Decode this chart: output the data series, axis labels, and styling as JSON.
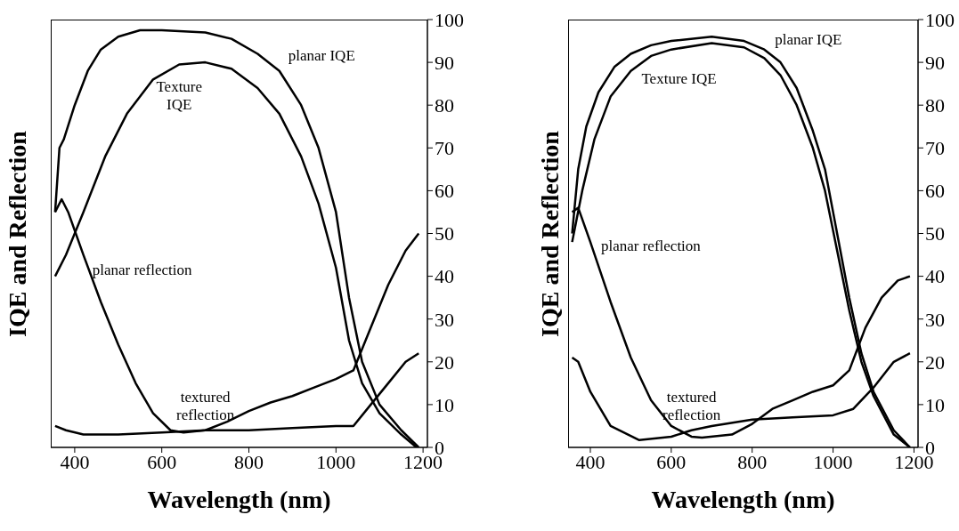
{
  "chart_data": [
    {
      "type": "line",
      "xlabel": "Wavelength (nm)",
      "ylabel": "IQE and Reflection",
      "xlim": [
        345,
        1210
      ],
      "xticks": [
        400,
        600,
        800,
        1000,
        1200
      ],
      "ylim": [
        0,
        100
      ],
      "yticks": [
        0,
        10,
        20,
        30,
        40,
        50,
        60,
        70,
        80,
        90,
        100
      ],
      "series": [
        {
          "name": "planar IQE",
          "color": "#000000",
          "x": [
            355,
            365,
            375,
            400,
            430,
            460,
            500,
            550,
            600,
            700,
            760,
            820,
            870,
            920,
            960,
            1000,
            1030,
            1060,
            1100,
            1150,
            1190
          ],
          "values": [
            55,
            70,
            72,
            80,
            88,
            93,
            96,
            97.5,
            97.5,
            97,
            95.5,
            92,
            88,
            80,
            70,
            55,
            35,
            20,
            10,
            4,
            0
          ]
        },
        {
          "name": "Texture IQE",
          "color": "#000000",
          "x": [
            355,
            380,
            420,
            470,
            520,
            580,
            640,
            700,
            760,
            820,
            870,
            920,
            960,
            1000,
            1030,
            1060,
            1100,
            1150,
            1185
          ],
          "values": [
            40,
            45,
            55,
            68,
            78,
            86,
            89.5,
            90,
            88.5,
            84,
            78,
            68,
            57,
            42,
            25,
            15,
            8,
            3,
            0
          ]
        },
        {
          "name": "planar reflection",
          "color": "#000000",
          "x": [
            355,
            370,
            385,
            420,
            460,
            500,
            540,
            580,
            620,
            650,
            700,
            750,
            800,
            850,
            900,
            950,
            1000,
            1040,
            1080,
            1120,
            1160,
            1190
          ],
          "values": [
            55,
            58,
            55,
            45,
            34,
            24,
            15,
            8,
            4,
            3.5,
            4,
            6,
            8.5,
            10.5,
            12,
            14,
            16,
            18,
            28,
            38,
            46,
            50
          ]
        },
        {
          "name": "textured reflection",
          "color": "#000000",
          "x": [
            355,
            380,
            420,
            500,
            600,
            700,
            800,
            900,
            1000,
            1040,
            1080,
            1120,
            1160,
            1190
          ],
          "values": [
            5,
            4,
            3,
            3,
            3.5,
            4,
            4,
            4.5,
            5,
            5,
            10,
            15,
            20,
            22
          ]
        }
      ]
    },
    {
      "type": "line",
      "xlabel": "Wavelength (nm)",
      "ylabel": "IQE and Reflection",
      "xlim": [
        345,
        1210
      ],
      "xticks": [
        400,
        600,
        800,
        1000,
        1200
      ],
      "ylim": [
        0,
        100
      ],
      "yticks": [
        0,
        10,
        20,
        30,
        40,
        50,
        60,
        70,
        80,
        90,
        100
      ],
      "series": [
        {
          "name": "planar IQE",
          "color": "#000000",
          "x": [
            355,
            370,
            390,
            420,
            460,
            500,
            550,
            600,
            700,
            780,
            830,
            870,
            910,
            950,
            980,
            1010,
            1040,
            1070,
            1100,
            1150,
            1190
          ],
          "values": [
            50,
            65,
            75,
            83,
            89,
            92,
            94,
            95,
            96,
            95,
            93,
            90,
            84,
            74,
            65,
            50,
            35,
            22,
            13,
            4,
            0
          ]
        },
        {
          "name": "Texture IQE",
          "color": "#000000",
          "x": [
            355,
            380,
            410,
            450,
            500,
            550,
            600,
            700,
            780,
            830,
            870,
            910,
            950,
            980,
            1010,
            1040,
            1070,
            1100,
            1150,
            1190
          ],
          "values": [
            48,
            60,
            72,
            82,
            88,
            91.5,
            93,
            94.5,
            93.5,
            91,
            87,
            80,
            70,
            60,
            46,
            32,
            20,
            12,
            3,
            0
          ]
        },
        {
          "name": "planar reflection",
          "color": "#000000",
          "x": [
            355,
            370,
            400,
            450,
            500,
            550,
            600,
            650,
            676,
            750,
            800,
            850,
            900,
            950,
            1000,
            1040,
            1080,
            1120,
            1160,
            1190
          ],
          "values": [
            55,
            56,
            48,
            34,
            21,
            11,
            5,
            2.5,
            2.3,
            3,
            5.5,
            9,
            11,
            13,
            14.5,
            18,
            28,
            35,
            39,
            40
          ]
        },
        {
          "name": "textured reflection",
          "color": "#000000",
          "x": [
            355,
            370,
            400,
            450,
            521,
            600,
            650,
            700,
            800,
            900,
            1000,
            1050,
            1100,
            1150,
            1190
          ],
          "values": [
            21,
            20,
            13,
            5,
            1.7,
            2.5,
            4,
            5,
            6.5,
            7,
            7.5,
            9,
            14,
            20,
            22
          ]
        }
      ]
    }
  ]
}
